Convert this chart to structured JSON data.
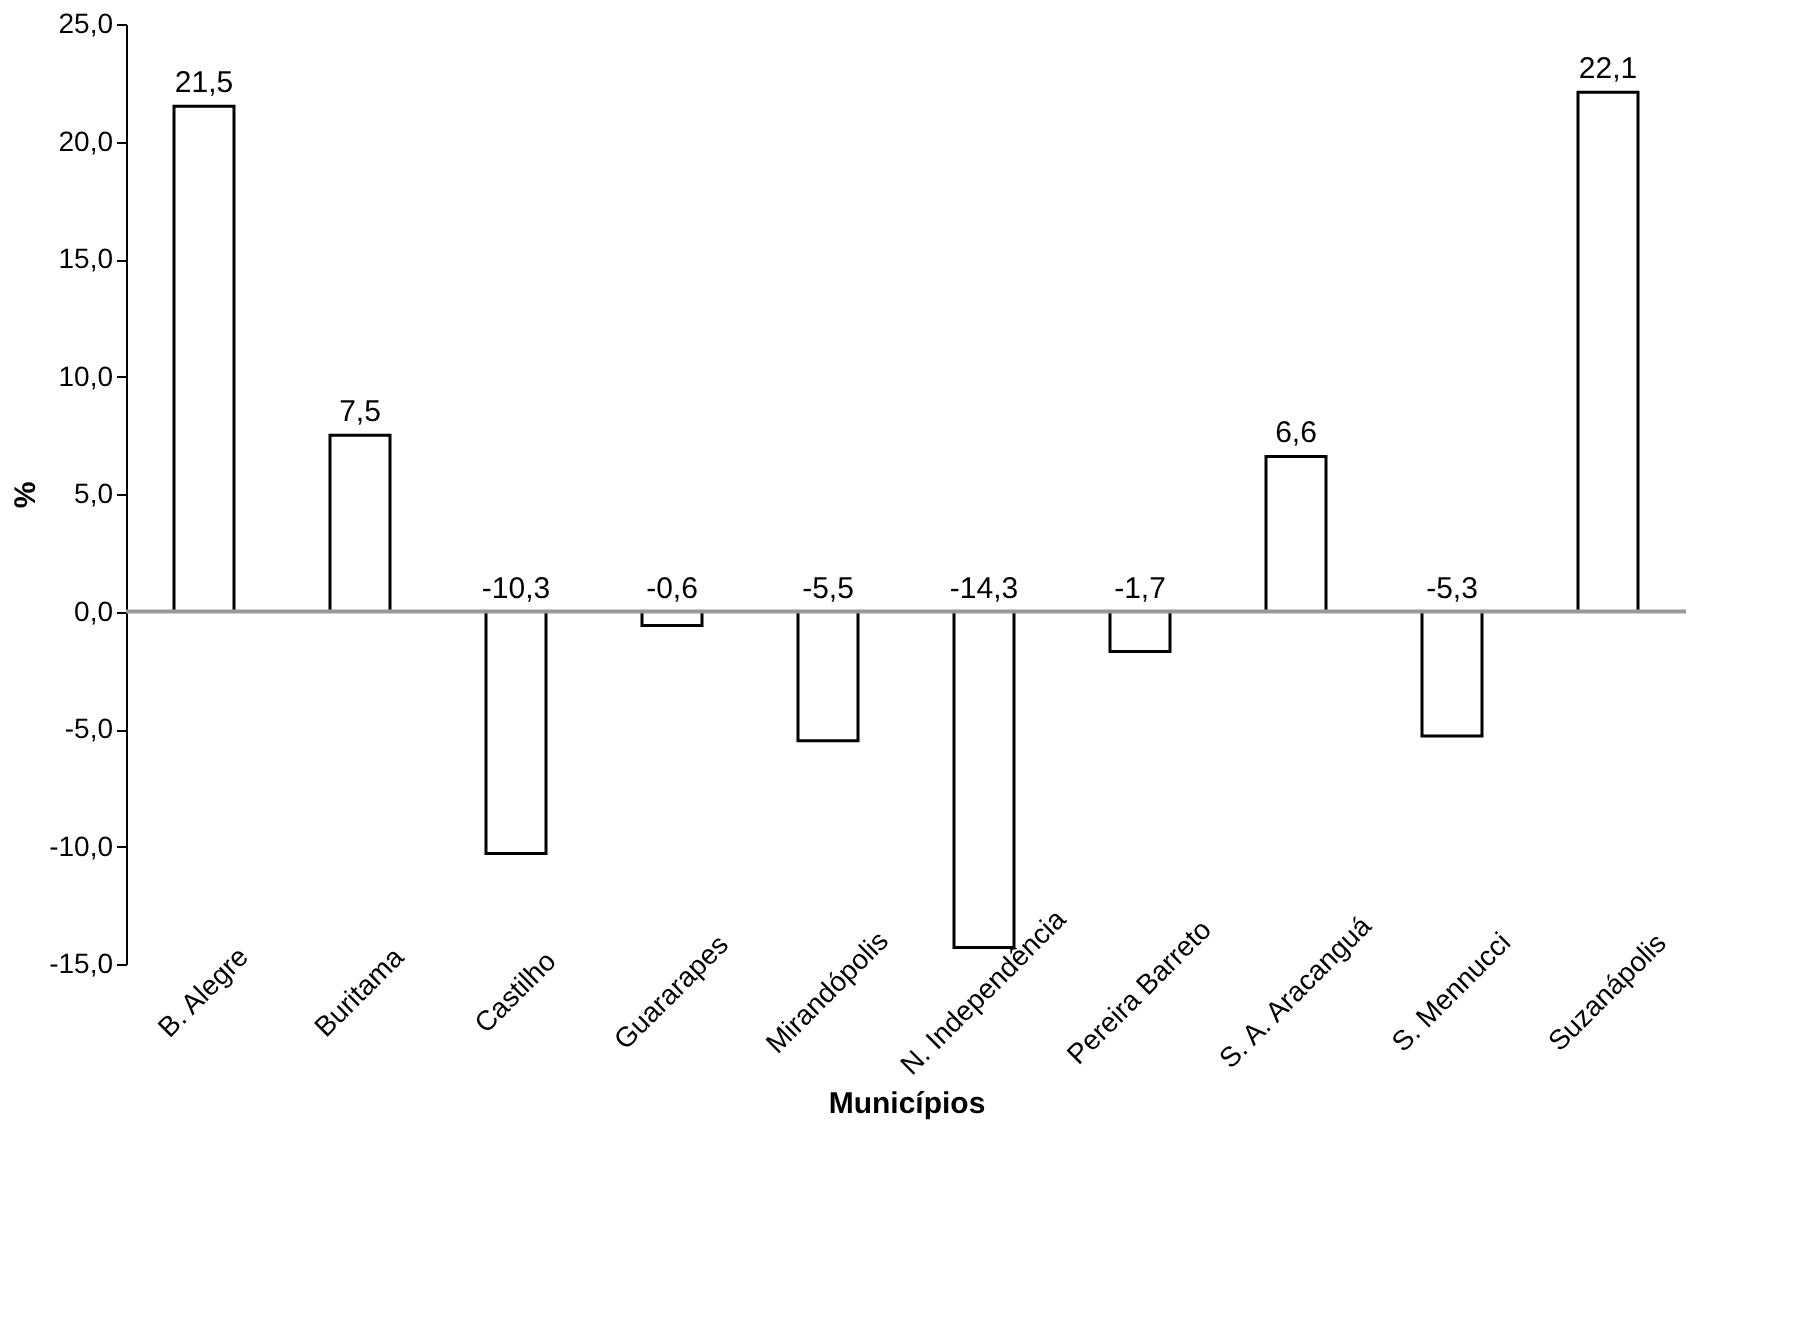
{
  "chart_data": {
    "type": "bar",
    "xlabel": "Municípios",
    "ylabel": "%",
    "categories": [
      "B. Alegre",
      "Buritama",
      "Castilho",
      "Guararapes",
      "Mirandópolis",
      "N. Independência",
      "Pereira Barreto",
      "S. A. Aracanguá",
      "S. Mennucci",
      "Suzanápolis"
    ],
    "values": [
      21.5,
      7.5,
      -10.3,
      -0.6,
      -5.5,
      -14.3,
      -1.7,
      6.6,
      -5.3,
      22.1
    ],
    "value_labels": [
      "21,5",
      "7,5",
      "-10,3",
      "-0,6",
      "-5,5",
      "-14,3",
      "-1,7",
      "6,6",
      "-5,3",
      "22,1"
    ],
    "color": "#ffffff",
    "ylim": [
      -15,
      25
    ],
    "yticks": [
      {
        "value": -15,
        "label": "-15,0"
      },
      {
        "value": -10,
        "label": "-10,0"
      },
      {
        "value": -5,
        "label": "-5,0"
      },
      {
        "value": 0,
        "label": "0,0"
      },
      {
        "value": 5,
        "label": "5,0"
      },
      {
        "value": 10,
        "label": "10,0"
      },
      {
        "value": 15,
        "label": "15,0"
      },
      {
        "value": 20,
        "label": "20,0"
      },
      {
        "value": 25,
        "label": "25,0"
      }
    ],
    "ref_lines": [
      {
        "axis": "y",
        "value": 0,
        "color": "#999999"
      }
    ],
    "grid": false
  }
}
